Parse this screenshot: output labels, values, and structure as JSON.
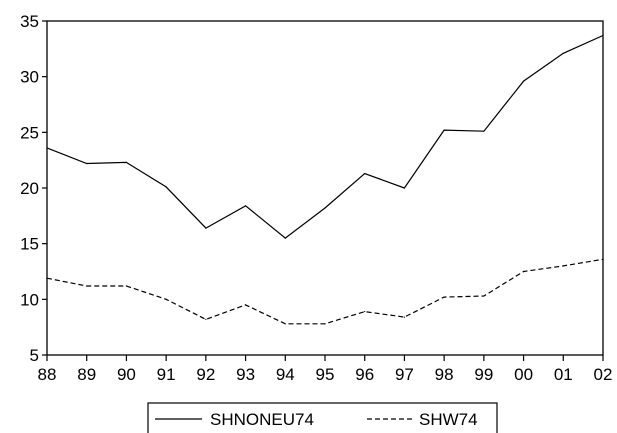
{
  "chart_data": {
    "type": "line",
    "title": "",
    "xlabel": "",
    "ylabel": "",
    "categories": [
      "88",
      "89",
      "90",
      "91",
      "92",
      "93",
      "94",
      "95",
      "96",
      "97",
      "98",
      "99",
      "00",
      "01",
      "02"
    ],
    "ylim": [
      5,
      35
    ],
    "yticks": [
      5,
      10,
      15,
      20,
      25,
      30,
      35
    ],
    "grid": false,
    "legend_position": "bottom-center",
    "series": [
      {
        "name": "SHNONEU74",
        "style": "solid",
        "color": "#000000",
        "values": [
          23.6,
          22.2,
          22.3,
          20.1,
          16.4,
          18.4,
          15.5,
          18.2,
          21.3,
          20.0,
          25.2,
          25.1,
          29.6,
          32.1,
          33.7
        ]
      },
      {
        "name": "SHW74",
        "style": "dashed",
        "color": "#000000",
        "values": [
          11.9,
          11.2,
          11.2,
          10.0,
          8.2,
          9.5,
          7.8,
          7.8,
          8.9,
          8.4,
          10.2,
          10.3,
          12.5,
          13.0,
          13.6
        ]
      }
    ]
  }
}
